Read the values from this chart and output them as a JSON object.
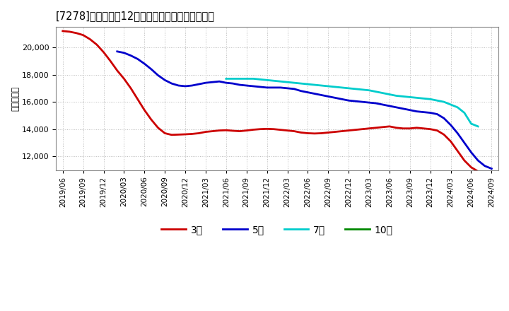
{
  "title": "[7278]　経常利益12か月移動合計の平均値の推移",
  "ylabel": "（百万円）",
  "background_color": "#ffffff",
  "plot_bg_color": "#ffffff",
  "grid_color": "#aaaaaa",
  "ylim": [
    11000,
    21500
  ],
  "yticks": [
    12000,
    14000,
    16000,
    18000,
    20000
  ],
  "series": {
    "3year": {
      "color": "#cc0000",
      "label": "3年",
      "y": [
        21200,
        21150,
        21050,
        20900,
        20600,
        20200,
        19650,
        19000,
        18300,
        17700,
        17000,
        16200,
        15400,
        14700,
        14100,
        13700,
        13580,
        13600,
        13620,
        13650,
        13700,
        13800,
        13850,
        13900,
        13920,
        13880,
        13850,
        13900,
        13960,
        14000,
        14020,
        14000,
        13950,
        13900,
        13850,
        13750,
        13700,
        13680,
        13700,
        13750,
        13800,
        13850,
        13900,
        13950,
        14000,
        14050,
        14100,
        14150,
        14200,
        14100,
        14050,
        14050,
        14100,
        14050,
        14000,
        13900,
        13600,
        13100,
        12400,
        11700,
        11200,
        10900,
        10700,
        10500
      ]
    },
    "5year": {
      "color": "#0000cc",
      "label": "5年",
      "y": [
        null,
        null,
        null,
        null,
        null,
        null,
        null,
        null,
        19700,
        19600,
        19400,
        19150,
        18800,
        18400,
        17950,
        17600,
        17350,
        17200,
        17150,
        17200,
        17300,
        17400,
        17450,
        17500,
        17400,
        17350,
        17250,
        17200,
        17150,
        17100,
        17050,
        17050,
        17050,
        17000,
        16950,
        16800,
        16700,
        16600,
        16500,
        16400,
        16300,
        16200,
        16100,
        16050,
        16000,
        15950,
        15900,
        15800,
        15700,
        15600,
        15500,
        15400,
        15300,
        15250,
        15200,
        15100,
        14800,
        14300,
        13700,
        13000,
        12300,
        11700,
        11300,
        11100
      ]
    },
    "7year": {
      "color": "#00cccc",
      "label": "7年",
      "y": [
        null,
        null,
        null,
        null,
        null,
        null,
        null,
        null,
        null,
        null,
        null,
        null,
        null,
        null,
        null,
        null,
        null,
        null,
        null,
        null,
        null,
        null,
        null,
        null,
        17700,
        17700,
        17700,
        17700,
        17700,
        17650,
        17600,
        17550,
        17500,
        17450,
        17400,
        17350,
        17300,
        17250,
        17200,
        17150,
        17100,
        17050,
        17000,
        16950,
        16900,
        16850,
        16750,
        16650,
        16550,
        16450,
        16400,
        16350,
        16300,
        16250,
        16200,
        16100,
        16000,
        15800,
        15600,
        15200,
        14400,
        14200,
        null,
        null
      ]
    },
    "10year": {
      "color": "#008800",
      "label": "10年",
      "y": [
        null,
        null,
        null,
        null,
        null,
        null,
        null,
        null,
        null,
        null,
        null,
        null,
        null,
        null,
        null,
        null,
        null,
        null,
        null,
        null,
        null,
        null,
        null,
        null,
        null,
        null,
        null,
        null,
        null,
        null,
        null,
        null,
        null,
        null,
        null,
        null,
        null,
        null,
        null,
        null,
        null,
        null,
        null,
        null,
        null,
        null,
        null,
        null,
        null,
        null,
        null,
        null,
        null,
        null,
        null,
        null,
        null,
        null,
        null,
        null,
        null,
        null,
        null,
        null
      ]
    }
  },
  "x_labels": [
    "2019/06",
    "2019/09",
    "2019/12",
    "2020/03",
    "2020/06",
    "2020/09",
    "2020/12",
    "2021/03",
    "2021/06",
    "2021/09",
    "2021/12",
    "2022/03",
    "2022/06",
    "2022/09",
    "2022/12",
    "2023/03",
    "2023/06",
    "2023/09",
    "2023/12",
    "2024/03",
    "2024/06",
    "2024/09"
  ],
  "n_points": 64
}
